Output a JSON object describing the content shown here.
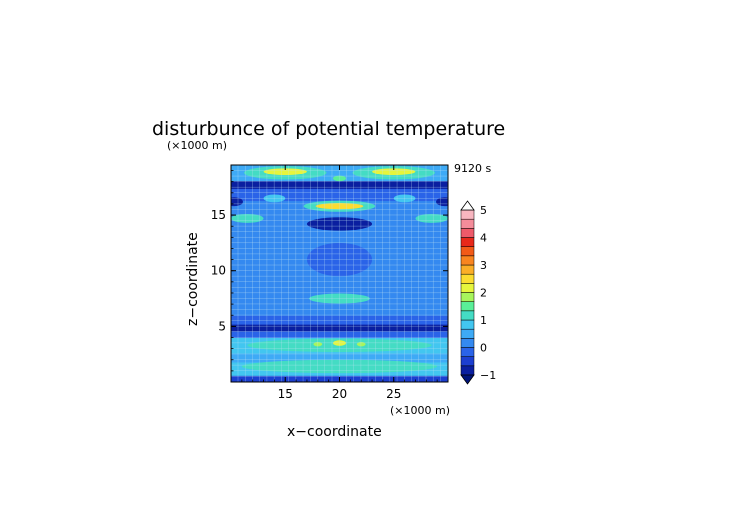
{
  "chart_data": {
    "type": "heatmap",
    "title": "disturbunce of potential temperature",
    "time_label": "9120 s",
    "xlabel": "x−coordinate",
    "ylabel": "z−coordinate",
    "x_unit": "(×1000 m)",
    "y_unit": "(×1000 m)",
    "xlim": [
      10,
      30
    ],
    "ylim": [
      0,
      19.5
    ],
    "x_ticks": [
      15,
      20,
      25
    ],
    "y_ticks": [
      5,
      10,
      15
    ],
    "grid": true,
    "colorbar": {
      "placement": "right",
      "min": -1,
      "max": 5,
      "tick_values": [
        -1,
        0,
        1,
        2,
        3,
        4,
        5
      ],
      "extend": "both"
    },
    "bands": [
      {
        "z_bottom": 0.0,
        "z_top": 0.6,
        "value": -0.5
      },
      {
        "z_bottom": 0.6,
        "z_top": 1.8,
        "value": 0.7
      },
      {
        "z_bottom": 1.8,
        "z_top": 2.6,
        "value": 0.5
      },
      {
        "z_bottom": 2.6,
        "z_top": 4.0,
        "value": 0.9
      },
      {
        "z_bottom": 4.0,
        "z_top": 4.6,
        "value": -0.2
      },
      {
        "z_bottom": 4.6,
        "z_top": 5.2,
        "value": -0.9
      },
      {
        "z_bottom": 5.2,
        "z_top": 6.0,
        "value": -0.3
      },
      {
        "z_bottom": 6.0,
        "z_top": 8.0,
        "value": 0.1
      },
      {
        "z_bottom": 8.0,
        "z_top": 11.5,
        "value": 0.0
      },
      {
        "z_bottom": 11.5,
        "z_top": 14.0,
        "value": 0.15
      },
      {
        "z_bottom": 14.0,
        "z_top": 15.0,
        "value": 0.3
      },
      {
        "z_bottom": 15.0,
        "z_top": 16.3,
        "value": 0.25
      },
      {
        "z_bottom": 16.3,
        "z_top": 17.4,
        "value": -0.2
      },
      {
        "z_bottom": 17.4,
        "z_top": 18.1,
        "value": -0.95
      },
      {
        "z_bottom": 18.1,
        "z_top": 19.5,
        "value": 0.35
      }
    ],
    "blobs": [
      {
        "x": 20,
        "z": 1.4,
        "rx": 9.0,
        "rz": 0.6,
        "value": 1.2
      },
      {
        "x": 20,
        "z": 3.3,
        "rx": 8.5,
        "rz": 0.6,
        "value": 1.2
      },
      {
        "x": 20,
        "z": 3.5,
        "rx": 0.6,
        "rz": 0.25,
        "value": 2.2
      },
      {
        "x": 18,
        "z": 3.4,
        "rx": 0.4,
        "rz": 0.2,
        "value": 1.8
      },
      {
        "x": 22,
        "z": 3.4,
        "rx": 0.4,
        "rz": 0.2,
        "value": 1.8
      },
      {
        "x": 20,
        "z": 7.5,
        "rx": 2.8,
        "rz": 0.45,
        "value": 1.2
      },
      {
        "x": 20,
        "z": 11.0,
        "rx": 3.0,
        "rz": 1.5,
        "value": -0.2
      },
      {
        "x": 20,
        "z": 14.2,
        "rx": 3.0,
        "rz": 0.6,
        "value": -0.8
      },
      {
        "x": 11.5,
        "z": 14.7,
        "rx": 1.5,
        "rz": 0.4,
        "value": 1.1
      },
      {
        "x": 28.5,
        "z": 14.7,
        "rx": 1.5,
        "rz": 0.4,
        "value": 1.1
      },
      {
        "x": 20,
        "z": 15.8,
        "rx": 3.3,
        "rz": 0.5,
        "value": 1.3
      },
      {
        "x": 20,
        "z": 15.8,
        "rx": 2.2,
        "rz": 0.28,
        "value": 2.4
      },
      {
        "x": 10.3,
        "z": 16.2,
        "rx": 0.8,
        "rz": 0.4,
        "value": -0.9
      },
      {
        "x": 29.7,
        "z": 16.2,
        "rx": 0.8,
        "rz": 0.4,
        "value": -0.9
      },
      {
        "x": 14,
        "z": 16.5,
        "rx": 1.0,
        "rz": 0.35,
        "value": 0.9
      },
      {
        "x": 26,
        "z": 16.5,
        "rx": 1.0,
        "rz": 0.35,
        "value": 0.9
      },
      {
        "x": 15,
        "z": 18.8,
        "rx": 3.8,
        "rz": 0.6,
        "value": 1.1
      },
      {
        "x": 25,
        "z": 18.8,
        "rx": 3.8,
        "rz": 0.6,
        "value": 1.1
      },
      {
        "x": 15,
        "z": 18.9,
        "rx": 2.0,
        "rz": 0.3,
        "value": 2.0
      },
      {
        "x": 25,
        "z": 18.9,
        "rx": 2.0,
        "rz": 0.3,
        "value": 2.0
      },
      {
        "x": 20,
        "z": 18.3,
        "rx": 0.6,
        "rz": 0.25,
        "value": 1.5
      }
    ]
  },
  "colors": {
    "levels": [
      "#0a1fa0",
      "#1c3fd0",
      "#2a63e8",
      "#3489f0",
      "#3eaaf6",
      "#42c6f0",
      "#44dcc4",
      "#5aef98",
      "#a7f55c",
      "#e6f53d",
      "#fbdc31",
      "#fbae28",
      "#f98520",
      "#f25a18",
      "#e8281a",
      "#ee5a6a",
      "#f48c9a",
      "#f8b6c0"
    ],
    "over": "#ffffff",
    "under": "#00147a",
    "grid": "#bfe4f4"
  }
}
